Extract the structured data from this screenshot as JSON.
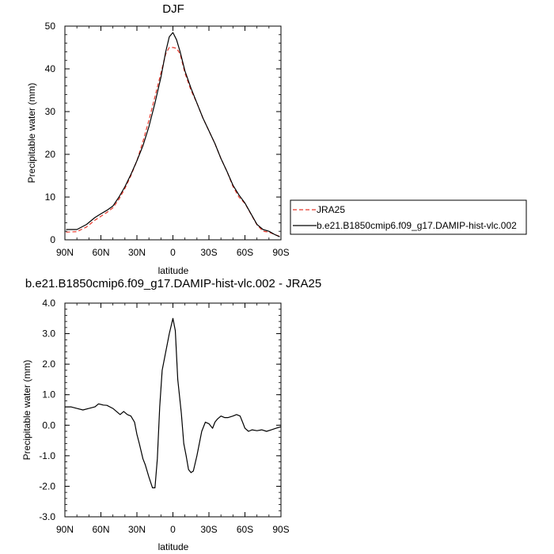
{
  "chart_data": [
    {
      "type": "line",
      "title": "DJF",
      "xlabel": "latitude",
      "ylabel": "Precipitable water (mm)",
      "xlim": [
        90,
        -90
      ],
      "ylim": [
        0,
        50
      ],
      "x_ticks": [
        "90N",
        "60N",
        "30N",
        "0",
        "30S",
        "60S",
        "90S"
      ],
      "y_ticks": [
        "0",
        "10",
        "20",
        "30",
        "40",
        "50"
      ],
      "legend_position": "right",
      "series": [
        {
          "name": "JRA25",
          "color": "#e8392c",
          "dash": "dashed",
          "x": [
            89,
            80,
            72,
            65,
            60,
            55,
            50,
            45,
            40,
            35,
            30,
            25,
            20,
            15,
            10,
            6,
            3,
            0,
            -3,
            -6,
            -10,
            -15,
            -20,
            -25,
            -30,
            -35,
            -40,
            -45,
            -50,
            -55,
            -60,
            -65,
            -70,
            -75,
            -80,
            -85,
            -89
          ],
          "y": [
            1.8,
            1.9,
            3.0,
            4.6,
            5.5,
            6.4,
            7.5,
            9.5,
            12.0,
            15.0,
            18.5,
            23.0,
            28.0,
            33.5,
            39.0,
            43.5,
            45.0,
            45.0,
            44.8,
            43.5,
            39.0,
            35.0,
            32.0,
            28.5,
            25.5,
            22.5,
            19.0,
            16.0,
            12.5,
            10.0,
            8.5,
            6.0,
            3.5,
            2.0,
            1.8,
            1.2,
            0.8
          ]
        },
        {
          "name": "b.e21.B1850cmip6.f09_g17.DAMIP-hist-vlc.002",
          "color": "#000000",
          "dash": "solid",
          "x": [
            89,
            80,
            72,
            65,
            60,
            55,
            50,
            45,
            40,
            35,
            30,
            25,
            20,
            15,
            10,
            6,
            3,
            0,
            -3,
            -6,
            -10,
            -15,
            -20,
            -25,
            -30,
            -35,
            -40,
            -45,
            -50,
            -55,
            -60,
            -65,
            -70,
            -75,
            -80,
            -85,
            -89
          ],
          "y": [
            2.4,
            2.4,
            3.6,
            5.2,
            6.1,
            6.9,
            7.9,
            10.0,
            12.4,
            15.3,
            18.5,
            22.0,
            26.5,
            32.0,
            38.0,
            44.0,
            47.5,
            48.5,
            46.8,
            44.0,
            39.5,
            35.5,
            32.0,
            28.5,
            25.5,
            22.5,
            19.0,
            16.0,
            12.8,
            10.5,
            8.6,
            6.1,
            3.6,
            2.4,
            2.0,
            1.2,
            0.7
          ]
        }
      ]
    },
    {
      "type": "line",
      "title": "b.e21.B1850cmip6.f09_g17.DAMIP-hist-vlc.002 - JRA25",
      "xlabel": "latitude",
      "ylabel": "Precipitable water (mm)",
      "xlim": [
        90,
        -90
      ],
      "ylim": [
        -3.0,
        4.0
      ],
      "x_ticks": [
        "90N",
        "60N",
        "30N",
        "0",
        "30S",
        "60S",
        "90S"
      ],
      "y_ticks": [
        "-3.0",
        "-2.0",
        "-1.0",
        "0.0",
        "1.0",
        "2.0",
        "3.0",
        "4.0"
      ],
      "series": [
        {
          "color": "#000000",
          "dash": "solid",
          "x": [
            90,
            85,
            80,
            75,
            70,
            65,
            62,
            58,
            55,
            50,
            47,
            44,
            41,
            38,
            35,
            32,
            30,
            28,
            25,
            23,
            20,
            17,
            15,
            13,
            11,
            9,
            6,
            3,
            0,
            -2,
            -4,
            -7,
            -9,
            -11,
            -13,
            -15,
            -17,
            -20,
            -24,
            -27,
            -30,
            -33,
            -35,
            -37,
            -40,
            -43,
            -46,
            -50,
            -53,
            -56,
            -58,
            -60,
            -63,
            -66,
            -70,
            -74,
            -78,
            -82,
            -86,
            -90
          ],
          "y": [
            0.6,
            0.6,
            0.55,
            0.5,
            0.55,
            0.6,
            0.7,
            0.66,
            0.65,
            0.55,
            0.45,
            0.35,
            0.45,
            0.35,
            0.3,
            0.1,
            -0.3,
            -0.6,
            -1.1,
            -1.3,
            -1.7,
            -2.05,
            -2.05,
            -1.1,
            0.6,
            1.8,
            2.4,
            3.0,
            3.5,
            3.1,
            1.5,
            0.4,
            -0.6,
            -1.0,
            -1.45,
            -1.55,
            -1.5,
            -1.0,
            -0.2,
            0.1,
            0.05,
            -0.1,
            0.1,
            0.2,
            0.3,
            0.25,
            0.25,
            0.3,
            0.35,
            0.3,
            0.1,
            -0.1,
            -0.2,
            -0.15,
            -0.18,
            -0.15,
            -0.2,
            -0.15,
            -0.1,
            -0.05
          ]
        }
      ]
    }
  ]
}
